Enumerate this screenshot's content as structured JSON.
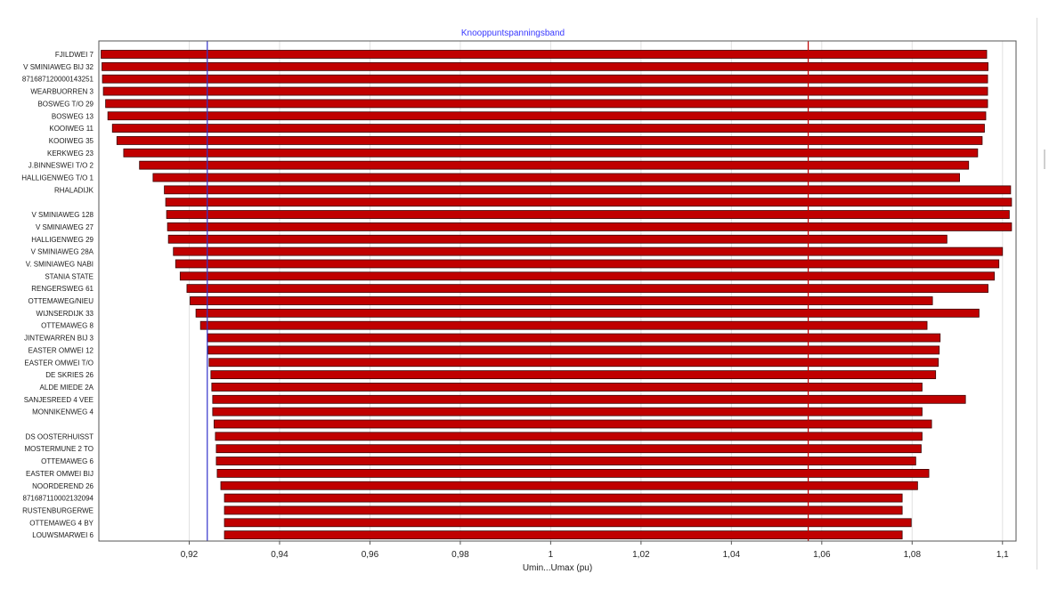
{
  "chart_data": {
    "type": "bar",
    "orientation": "horizontal-range",
    "title": "Knooppuntspanningsband",
    "xlabel": "Umin...Umax (pu)",
    "ylabel": "",
    "xlim": [
      0.9,
      1.103
    ],
    "xticks": [
      "0,92",
      "0,94",
      "0,96",
      "0,98",
      "1",
      "1,02",
      "1,04",
      "1,06",
      "1,08",
      "1,1"
    ],
    "xtick_values": [
      0.92,
      0.94,
      0.96,
      0.98,
      1.0,
      1.02,
      1.04,
      1.06,
      1.08,
      1.1
    ],
    "grid": true,
    "legend": "none",
    "reference_lines": [
      {
        "x": 0.924,
        "color": "#3333cc"
      },
      {
        "x": 1.057,
        "color": "#c00000"
      }
    ],
    "categories": [
      "FJILDWEI 7",
      "V SMINIAWEG BIJ 32",
      "871687120000143251",
      "WEARBUORREN 3",
      "BOSWEG T/O 29",
      "BOSWEG 13",
      "KOOIWEG 11",
      "KOOIWEG 35",
      "KERKWEG 23",
      "J.BINNESWEI T/O 2",
      "HALLIGENWEG T/O 1",
      "RHALADIJK",
      "",
      "V SMINIAWEG 128",
      "V SMINIAWEG 27",
      "HALLIGENWEG 29",
      "V SMINIAWEG 28A",
      "V. SMINIAWEG NABI",
      "STANIA STATE",
      "RENGERSWEG 61",
      "OTTEMAWEG/NIEU",
      "WIJNSERDIJK 33",
      "OTTEMAWEG 8",
      "JINTEWARREN BIJ 3",
      "EASTER OMWEI 12",
      "EASTER OMWEI T/O",
      "DE SKRIES 26",
      "ALDE MIEDE 2A",
      "SANJESREED 4 VEE",
      "MONNIKENWEG 4",
      "",
      "DS OOSTERHUISST",
      "MOSTERMUNE 2 TO",
      "OTTEMAWEG 6",
      "EASTER OMWEI BIJ",
      "NOORDEREND 26",
      "871687110002132094",
      "RUSTENBURGERWE",
      "OTTEMAWEG 4 BY",
      "LOUWSMARWEI 6"
    ],
    "series": [
      {
        "color": "#c00000",
        "umin": [
          0.9005,
          0.9007,
          0.9008,
          0.901,
          0.9015,
          0.902,
          0.903,
          0.904,
          0.9055,
          0.909,
          0.912,
          0.9145,
          0.9148,
          0.915,
          0.9152,
          0.9154,
          0.9165,
          0.917,
          0.918,
          0.9195,
          0.9202,
          0.9215,
          0.9225,
          0.924,
          0.9242,
          0.9244,
          0.9248,
          0.925,
          0.9252,
          0.9252,
          0.9255,
          0.9258,
          0.926,
          0.926,
          0.9262,
          0.927,
          0.9278,
          0.9278,
          0.9278,
          0.9278
        ],
        "umax": [
          1.0965,
          1.0968,
          1.0967,
          1.0967,
          1.0967,
          1.0963,
          1.096,
          1.0955,
          1.0945,
          1.0925,
          1.0905,
          1.1018,
          1.102,
          1.1015,
          1.102,
          1.0877,
          1.1,
          1.0992,
          1.0982,
          1.0968,
          1.0845,
          1.0948,
          1.0833,
          1.0862,
          1.086,
          1.0858,
          1.0852,
          1.0822,
          1.0918,
          1.0822,
          1.0843,
          1.0822,
          1.082,
          1.0808,
          1.0837,
          1.0812,
          1.0778,
          1.0778,
          1.0798,
          1.0778
        ]
      }
    ]
  }
}
